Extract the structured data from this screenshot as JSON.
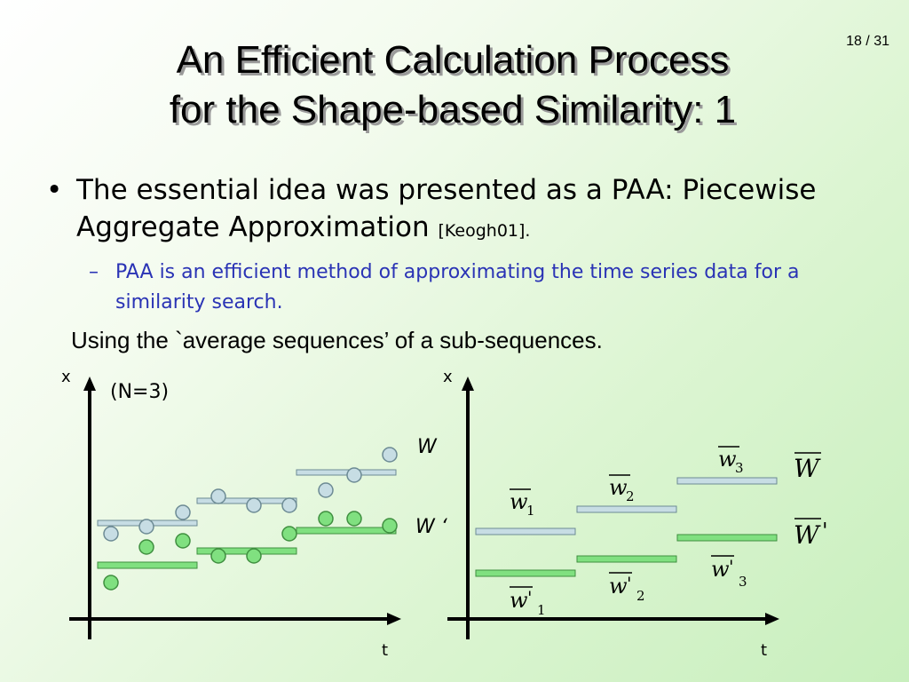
{
  "slide": {
    "title_line1": "An Efficient Calculation Process",
    "title_line2": "for the Shape-based Similarity: 1",
    "page": "18 / 31"
  },
  "bullet": {
    "symbol": "•",
    "text": "The essential idea was presented as a PAA: Piecewise Aggregate Approximation ",
    "cite": "[Keogh01]."
  },
  "subbullet": {
    "symbol": "–",
    "text": "PAA is an efficient method of approximating the time series data for a similarity search."
  },
  "caption": "Using the `average sequences’ of a sub-sequences.",
  "diagram": {
    "left": {
      "x_label": "x",
      "t_label": "t",
      "n_label": "(N=3)",
      "w_label": "W",
      "w_prime_label": "W ‘"
    },
    "right": {
      "x_label": "x",
      "t_label": "t",
      "big_w": "W",
      "big_w_prime": "W",
      "w": "w",
      "prime": "'",
      "subs": [
        "1",
        "2",
        "3"
      ]
    },
    "colors": {
      "blue_fill": "#c7dde4",
      "green_fill": "#80e080",
      "blue_bar": "#c7dde4",
      "green_bar": "#80e080"
    }
  }
}
